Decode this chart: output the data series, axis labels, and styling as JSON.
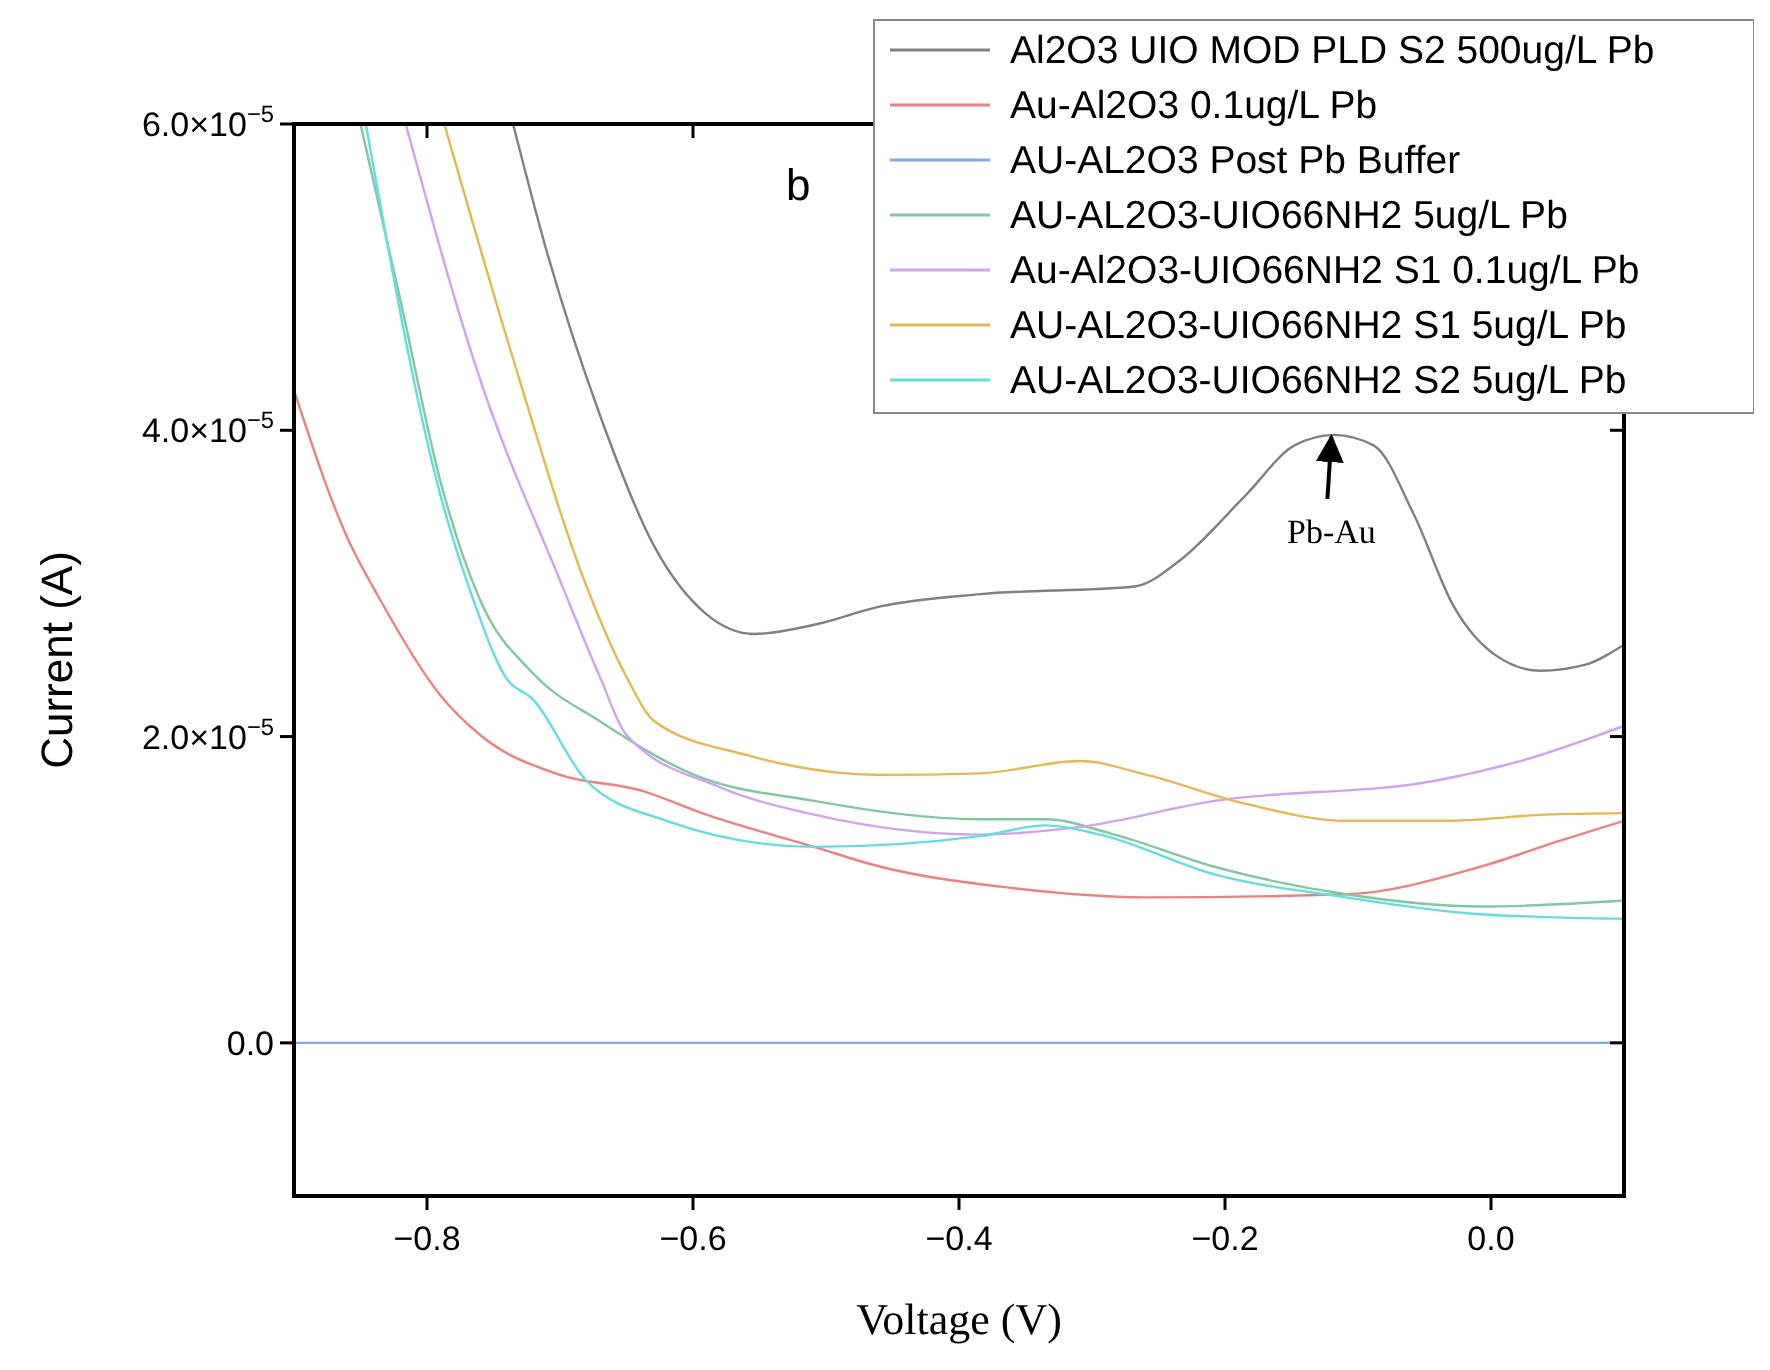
{
  "chart_data": {
    "type": "line",
    "xlabel": "Voltage (V)",
    "ylabel": "Current (A)",
    "xlim": [
      -0.9,
      0.1
    ],
    "xticks": [
      {
        "value": -0.8,
        "label": "−0.8"
      },
      {
        "value": -0.6,
        "label": "−0.6"
      },
      {
        "value": -0.4,
        "label": "−0.4"
      },
      {
        "value": -0.2,
        "label": "−0.2"
      },
      {
        "value": 0,
        "label": "0.0"
      }
    ],
    "ylim": [
      -1e-05,
      6e-05
    ],
    "yticks": [
      {
        "value": 0,
        "label": "0.0"
      },
      {
        "value": 2e-05,
        "label": "2.0×10$^{−5}$"
      },
      {
        "value": 4e-05,
        "label": "4.0×10$^{−5}$"
      },
      {
        "value": 6e-05,
        "label": "6.0×10$^{−5}$"
      }
    ],
    "grid": false,
    "legend": "top right",
    "line_style": "solid",
    "marker": "none",
    "annotations": [
      "b",
      {
        "text": "Pb-Au",
        "x": -0.12,
        "y": 3.97e-05
      }
    ],
    "series": [
      {
        "name": "Al2O3 UIO MOD PLD S2 500ug/L Pb",
        "color": "#808080",
        "x": [
          -0.735,
          -0.711,
          -0.67,
          -0.629,
          -0.59,
          -0.554,
          -0.509,
          -0.459,
          -0.384,
          -0.268,
          -0.234,
          -0.184,
          -0.148,
          -0.118,
          -0.088,
          -0.058,
          -0.028,
          0.002,
          0.037,
          0.071,
          0.1
        ],
        "values": [
          5.99e-05,
          5.2e-05,
          4.1e-05,
          3.24e-05,
          2.8e-05,
          2.67e-05,
          2.73e-05,
          2.85e-05,
          2.93e-05,
          2.98e-05,
          3.15e-05,
          3.58e-05,
          3.9e-05,
          3.97e-05,
          3.9e-05,
          3.45e-05,
          2.85e-05,
          2.54e-05,
          2.43e-05,
          2.47e-05,
          2.6e-05
        ]
      },
      {
        "name": "Au-Al2O3 0.1ug/L Pb",
        "color": "#f08080",
        "x": [
          -0.9,
          -0.861,
          -0.835,
          -0.79,
          -0.76,
          -0.7,
          -0.64,
          -0.59,
          -0.509,
          -0.459,
          -0.369,
          -0.259,
          -0.109,
          -0.008,
          0.052,
          0.1
        ],
        "values": [
          4.26e-05,
          3.32e-05,
          2.89e-05,
          2.27e-05,
          2.01e-05,
          1.75e-05,
          1.65e-05,
          1.49e-05,
          1.28e-05,
          1.15e-05,
          1.02e-05,
          9.5e-06,
          9.7e-06,
          1.15e-05,
          1.32e-05,
          1.45e-05
        ]
      },
      {
        "name": "AU-AL2O3 Post Pb Buffer",
        "color": "#7fa6e6",
        "x": [
          -0.9,
          -0.6,
          -0.3,
          0.1
        ],
        "values": [
          0,
          0,
          0,
          0
        ]
      },
      {
        "name": "AU-AL2O3-UIO66NH2 5ug/L Pb",
        "color": "#80c8a0",
        "x": [
          -0.85,
          -0.82,
          -0.79,
          -0.76,
          -0.72,
          -0.67,
          -0.599,
          -0.509,
          -0.384,
          -0.335,
          -0.283,
          -0.208,
          -0.109,
          -0.008,
          0.1
        ],
        "values": [
          6e-05,
          4.85e-05,
          3.67e-05,
          2.89e-05,
          2.41e-05,
          2.1e-05,
          1.75e-05,
          1.58e-05,
          1.46e-05,
          1.46e-05,
          1.36e-05,
          1.15e-05,
          9.7e-06,
          8.9e-06,
          9.3e-06
        ]
      },
      {
        "name": "Au-Al2O3-UIO66NH2 S1 0.1ug/L Pb",
        "color": "#d0a2f0",
        "x": [
          -0.816,
          -0.76,
          -0.7,
          -0.67,
          -0.65,
          -0.58,
          -0.509,
          -0.384,
          -0.309,
          -0.208,
          -0.043,
          0.022,
          0.1
        ],
        "values": [
          6e-05,
          4.33e-05,
          3.02e-05,
          2.39e-05,
          2.01e-05,
          1.67e-05,
          1.49e-05,
          1.36e-05,
          1.41e-05,
          1.58e-05,
          1.71e-05,
          1.84e-05,
          2.07e-05
        ]
      },
      {
        "name": "AU-AL2O3-UIO66NH2 S1 5ug/L Pb",
        "color": "#e6b84d",
        "x": [
          -0.787,
          -0.735,
          -0.68,
          -0.65,
          -0.629,
          -0.56,
          -0.459,
          -0.384,
          -0.309,
          -0.259,
          -0.184,
          -0.109,
          -0.034,
          0.041,
          0.1
        ],
        "values": [
          6e-05,
          4.46e-05,
          2.98e-05,
          2.39e-05,
          2.1e-05,
          1.88e-05,
          1.75e-05,
          1.76e-05,
          1.84e-05,
          1.75e-05,
          1.56e-05,
          1.45e-05,
          1.45e-05,
          1.49e-05,
          1.5e-05
        ]
      },
      {
        "name": "AU-AL2O3-UIO66NH2 S2 5ug/L Pb",
        "color": "#5ee0e0",
        "x": [
          -0.846,
          -0.79,
          -0.765,
          -0.741,
          -0.72,
          -0.68,
          -0.62,
          -0.509,
          -0.384,
          -0.335,
          -0.294,
          -0.208,
          -0.109,
          -0.008,
          0.1
        ],
        "values": [
          6e-05,
          3.58e-05,
          2.89e-05,
          2.39e-05,
          2.24e-05,
          1.71e-05,
          1.45e-05,
          1.28e-05,
          1.35e-05,
          1.42e-05,
          1.36e-05,
          1.1e-05,
          9.5e-06,
          8.4e-06,
          8.1e-06
        ]
      }
    ]
  }
}
